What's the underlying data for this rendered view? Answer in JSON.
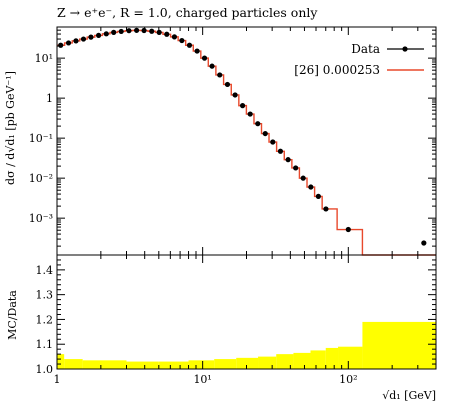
{
  "chart_data": [
    {
      "type": "line",
      "title": "Z → e⁺e⁻, R = 1.0, charged particles only",
      "ylabel": "dσ / d√d₁ [pb GeV⁻¹]",
      "xlabel": "√d₁ [GeV]",
      "x_scale": "log",
      "y_scale": "log",
      "xlim": [
        1,
        400
      ],
      "ylim": [
        0.00012,
        60
      ],
      "legend_position": "top-right",
      "x_tick_labels": [
        "1",
        "10¹",
        "10²"
      ],
      "y_tick_labels": [
        "10¹",
        "1",
        "10⁻¹",
        "10⁻²",
        "10⁻³"
      ],
      "colors": {
        "data": "#000000",
        "mc": "#e8492c"
      },
      "series": [
        {
          "name": "Data",
          "style": "points",
          "x": [
            1.06,
            1.2,
            1.35,
            1.52,
            1.71,
            1.93,
            2.18,
            2.45,
            2.76,
            3.12,
            3.52,
            3.96,
            4.47,
            5.03,
            5.67,
            6.4,
            7.2,
            8.12,
            9.16,
            10.3,
            11.6,
            13.1,
            14.8,
            16.7,
            18.8,
            21.2,
            23.9,
            26.9,
            30.3,
            34.2,
            38.6,
            43.5,
            49.0,
            55.3,
            62.3,
            70.2,
            100.0,
            330.0
          ],
          "y": [
            21.0,
            24.0,
            27.0,
            30.0,
            33.5,
            37.0,
            40.5,
            44.0,
            46.5,
            48.5,
            49.5,
            49.0,
            47.0,
            44.0,
            39.5,
            34.0,
            27.5,
            21.0,
            15.0,
            10.0,
            6.3,
            3.8,
            2.2,
            1.2,
            0.65,
            0.4,
            0.23,
            0.13,
            0.08,
            0.047,
            0.029,
            0.018,
            0.01,
            0.006,
            0.0035,
            0.0017,
            0.00052,
            2.1e-05
          ]
        },
        {
          "name": "[26] 0.000253",
          "style": "step",
          "x": [
            1.06,
            1.2,
            1.35,
            1.52,
            1.71,
            1.93,
            2.18,
            2.45,
            2.76,
            3.12,
            3.52,
            3.96,
            4.47,
            5.03,
            5.67,
            6.4,
            7.2,
            8.12,
            9.16,
            10.3,
            11.6,
            13.1,
            14.8,
            16.7,
            18.8,
            21.2,
            23.9,
            26.9,
            30.3,
            34.2,
            38.6,
            43.5,
            49.0,
            55.3,
            62.3,
            70.2,
            100.0,
            330.0
          ],
          "y": [
            21.0,
            24.0,
            27.0,
            30.0,
            33.5,
            37.0,
            40.5,
            44.0,
            46.5,
            48.5,
            49.5,
            49.0,
            47.0,
            44.0,
            39.5,
            34.0,
            27.5,
            21.0,
            15.0,
            10.0,
            6.3,
            3.8,
            2.2,
            1.2,
            0.65,
            0.4,
            0.23,
            0.13,
            0.08,
            0.047,
            0.029,
            0.018,
            0.01,
            0.006,
            0.0035,
            0.0017,
            0.00052,
            2.1e-05
          ]
        }
      ]
    },
    {
      "type": "area",
      "ylabel": "MC/Data",
      "xlabel": "√d₁ [GeV]",
      "x_scale": "log",
      "xlim": [
        1,
        400
      ],
      "ylim": [
        1.0,
        1.46
      ],
      "x_tick_labels": [
        "1",
        "10¹",
        "10²"
      ],
      "y_tick_labels": [
        "1.0",
        "1.1",
        "1.2",
        "1.3",
        "1.4"
      ],
      "colors": {
        "band": "#ffff00"
      },
      "bins": [
        {
          "xlo": 1.0,
          "xhi": 1.12,
          "hi": 1.06
        },
        {
          "xlo": 1.12,
          "xhi": 1.5,
          "hi": 1.04
        },
        {
          "xlo": 1.5,
          "xhi": 3.0,
          "hi": 1.035
        },
        {
          "xlo": 3.0,
          "xhi": 5.0,
          "hi": 1.03
        },
        {
          "xlo": 5.0,
          "xhi": 8.0,
          "hi": 1.03
        },
        {
          "xlo": 8.0,
          "xhi": 12.0,
          "hi": 1.035
        },
        {
          "xlo": 12.0,
          "xhi": 17.0,
          "hi": 1.04
        },
        {
          "xlo": 17.0,
          "xhi": 24.0,
          "hi": 1.045
        },
        {
          "xlo": 24.0,
          "xhi": 32.0,
          "hi": 1.05
        },
        {
          "xlo": 32.0,
          "xhi": 42.0,
          "hi": 1.06
        },
        {
          "xlo": 42.0,
          "xhi": 55.0,
          "hi": 1.065
        },
        {
          "xlo": 55.0,
          "xhi": 70.0,
          "hi": 1.075
        },
        {
          "xlo": 70.0,
          "xhi": 85.0,
          "hi": 1.085
        },
        {
          "xlo": 85.0,
          "xhi": 125.0,
          "hi": 1.09
        },
        {
          "xlo": 125.0,
          "xhi": 400.0,
          "hi": 1.19
        }
      ]
    }
  ]
}
